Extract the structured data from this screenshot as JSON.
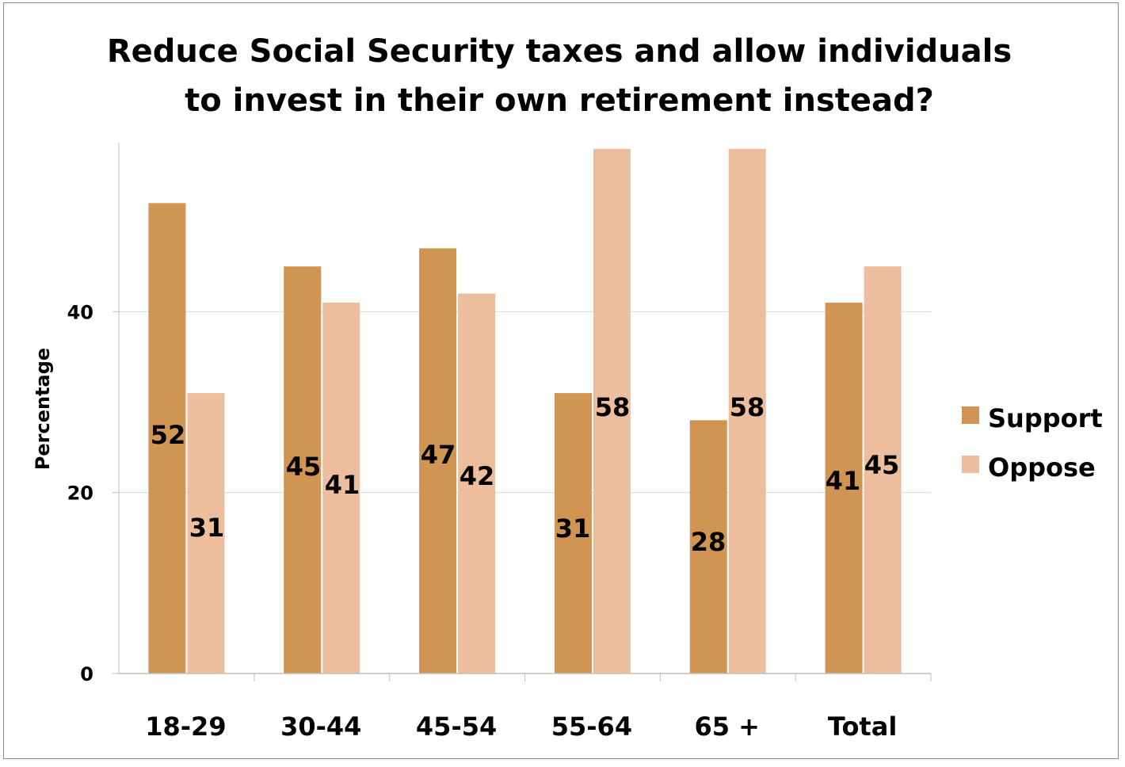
{
  "chart_data": {
    "type": "bar",
    "title": "Reduce Social Security taxes and allow individuals to invest in their own retirement instead?",
    "title_lines": [
      "Reduce Social Security taxes and allow individuals",
      "to invest in their own retirement instead?"
    ],
    "xlabel": "",
    "ylabel": "Percentage",
    "categories": [
      "18-29",
      "30-44",
      "45-54",
      "55-64",
      "65 +",
      "Total"
    ],
    "series": [
      {
        "name": "Support",
        "color": "#D09553",
        "values": [
          52,
          45,
          47,
          31,
          28,
          41
        ]
      },
      {
        "name": "Oppose",
        "color": "#ECBE9E",
        "values": [
          31,
          41,
          42,
          58,
          58,
          45
        ]
      }
    ],
    "ylim": [
      0,
      60
    ],
    "yticks": [
      0,
      20,
      40
    ],
    "grid": true,
    "legend_position": "right"
  }
}
